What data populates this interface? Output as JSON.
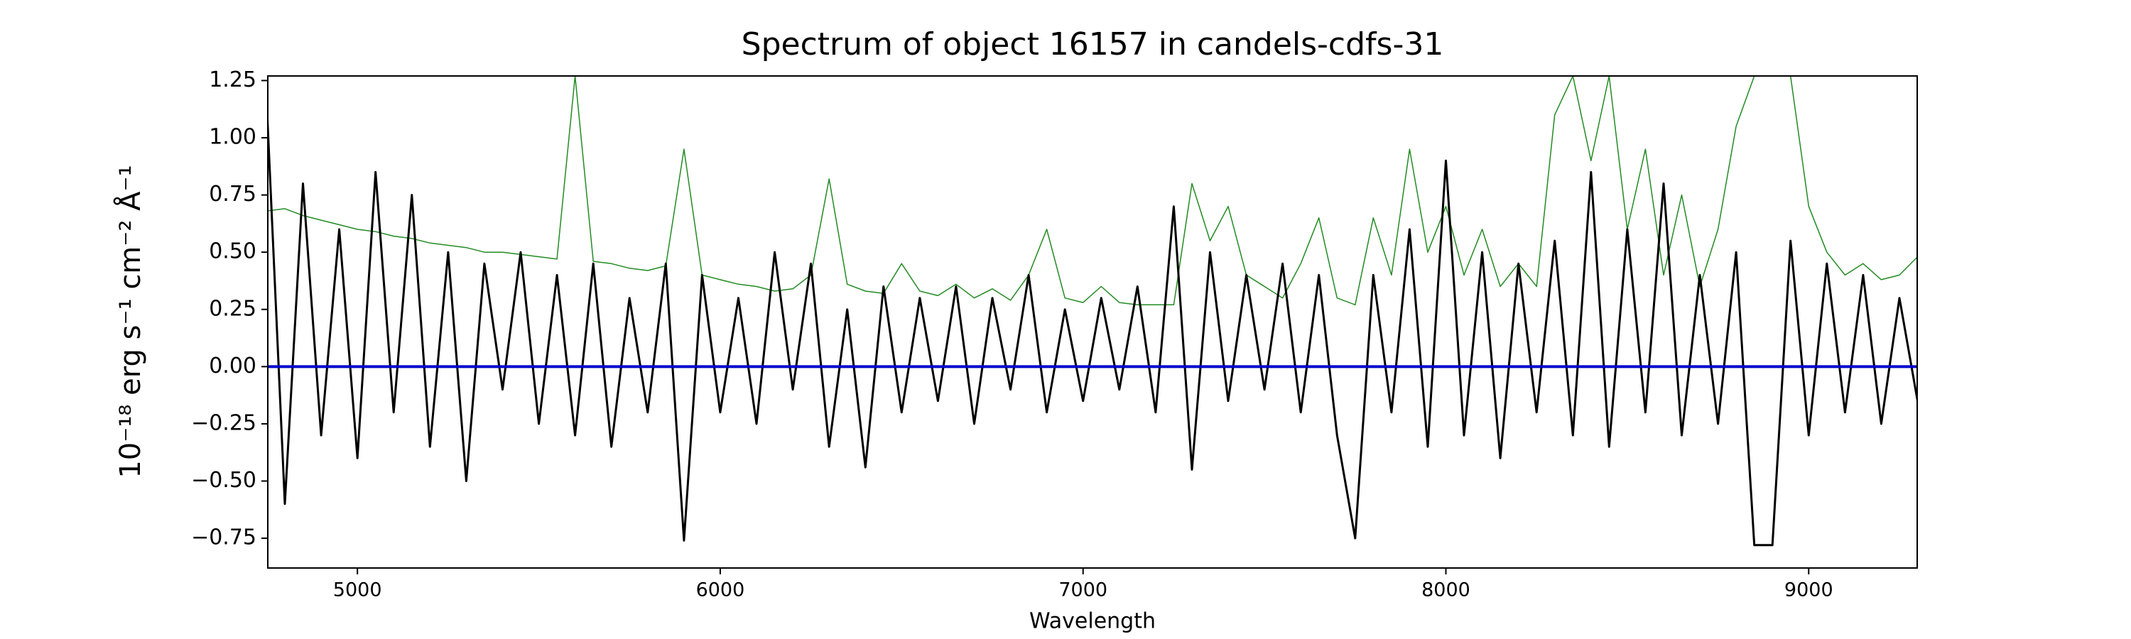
{
  "chart_data": {
    "type": "line",
    "title": "Spectrum of object 16157 in candels-cdfs-31",
    "x_label": "Wavelength",
    "y_label": "10⁻¹⁸ erg s⁻¹ cm⁻² Å⁻¹",
    "x": [
      4750,
      4800,
      4850,
      4900,
      4950,
      5000,
      5050,
      5100,
      5150,
      5200,
      5250,
      5300,
      5350,
      5400,
      5450,
      5500,
      5550,
      5600,
      5650,
      5700,
      5750,
      5800,
      5850,
      5900,
      5950,
      6000,
      6050,
      6100,
      6150,
      6200,
      6250,
      6300,
      6350,
      6400,
      6450,
      6500,
      6550,
      6600,
      6650,
      6700,
      6750,
      6800,
      6850,
      6900,
      6950,
      7000,
      7050,
      7100,
      7150,
      7200,
      7250,
      7300,
      7350,
      7400,
      7450,
      7500,
      7550,
      7600,
      7650,
      7700,
      7750,
      7800,
      7850,
      7900,
      7950,
      8000,
      8050,
      8100,
      8150,
      8200,
      8250,
      8300,
      8350,
      8400,
      8450,
      8500,
      8550,
      8600,
      8650,
      8700,
      8750,
      8800,
      8850,
      8900,
      8950,
      9000,
      9050,
      9100,
      9150,
      9200,
      9250,
      9300
    ],
    "series": [
      {
        "color": "#000000",
        "values": [
          1.15,
          -0.6,
          0.8,
          -0.3,
          0.6,
          -0.4,
          0.85,
          -0.2,
          0.75,
          -0.35,
          0.5,
          -0.5,
          0.45,
          -0.1,
          0.5,
          -0.25,
          0.4,
          -0.3,
          0.45,
          -0.35,
          0.3,
          -0.2,
          0.45,
          -0.76,
          0.4,
          -0.2,
          0.3,
          -0.25,
          0.5,
          -0.1,
          0.45,
          -0.35,
          0.25,
          -0.44,
          0.35,
          -0.2,
          0.3,
          -0.15,
          0.35,
          -0.25,
          0.3,
          -0.1,
          0.4,
          -0.2,
          0.25,
          -0.15,
          0.3,
          -0.1,
          0.35,
          -0.2,
          0.7,
          -0.45,
          0.5,
          -0.15,
          0.4,
          -0.1,
          0.45,
          -0.2,
          0.4,
          -0.3,
          -0.75,
          0.4,
          -0.2,
          0.6,
          -0.35,
          0.9,
          -0.3,
          0.5,
          -0.4,
          0.45,
          -0.2,
          0.55,
          -0.3,
          0.85,
          -0.35,
          0.6,
          -0.2,
          0.8,
          -0.3,
          0.4,
          -0.25,
          0.5,
          -0.78,
          -0.78,
          0.55,
          -0.3,
          0.45,
          -0.2,
          0.4,
          -0.25,
          0.3,
          -0.15
        ],
        "width": 3
      },
      {
        "color": "#228b22",
        "values": [
          0.68,
          0.69,
          0.66,
          0.64,
          0.62,
          0.6,
          0.59,
          0.57,
          0.56,
          0.54,
          0.53,
          0.52,
          0.5,
          0.5,
          0.49,
          0.48,
          0.47,
          1.27,
          0.46,
          0.45,
          0.43,
          0.42,
          0.44,
          0.95,
          0.4,
          0.38,
          0.36,
          0.35,
          0.33,
          0.34,
          0.4,
          0.82,
          0.36,
          0.33,
          0.32,
          0.45,
          0.33,
          0.31,
          0.36,
          0.3,
          0.34,
          0.29,
          0.4,
          0.6,
          0.3,
          0.28,
          0.35,
          0.28,
          0.27,
          0.27,
          0.27,
          0.8,
          0.55,
          0.7,
          0.4,
          0.35,
          0.3,
          0.45,
          0.65,
          0.3,
          0.27,
          0.65,
          0.4,
          0.95,
          0.5,
          0.7,
          0.4,
          0.6,
          0.35,
          0.45,
          0.35,
          1.1,
          1.27,
          0.9,
          1.27,
          0.6,
          0.95,
          0.4,
          0.75,
          0.35,
          0.6,
          1.05,
          1.27,
          1.27,
          1.27,
          0.7,
          0.5,
          0.4,
          0.45,
          0.38,
          0.4,
          0.48
        ],
        "width": 1.5
      },
      {
        "color": "#0000cd",
        "x": [
          4750,
          9300
        ],
        "values": [
          0,
          0
        ],
        "width": 4
      }
    ],
    "xlim": [
      4753,
      9299
    ],
    "ylim": [
      -0.88,
      1.27
    ],
    "xticks": [
      5000,
      6000,
      7000,
      8000,
      9000
    ],
    "yticks": [
      {
        "value": -0.75,
        "label": "−0.75"
      },
      {
        "value": -0.5,
        "label": "−0.50"
      },
      {
        "value": -0.25,
        "label": "−0.25"
      },
      {
        "value": 0,
        "label": "0.00"
      },
      {
        "value": 0.25,
        "label": "0.25"
      },
      {
        "value": 0.5,
        "label": "0.50"
      },
      {
        "value": 0.75,
        "label": "0.75"
      },
      {
        "value": 1,
        "label": "1.00"
      },
      {
        "value": 1.25,
        "label": "1.25"
      }
    ]
  }
}
